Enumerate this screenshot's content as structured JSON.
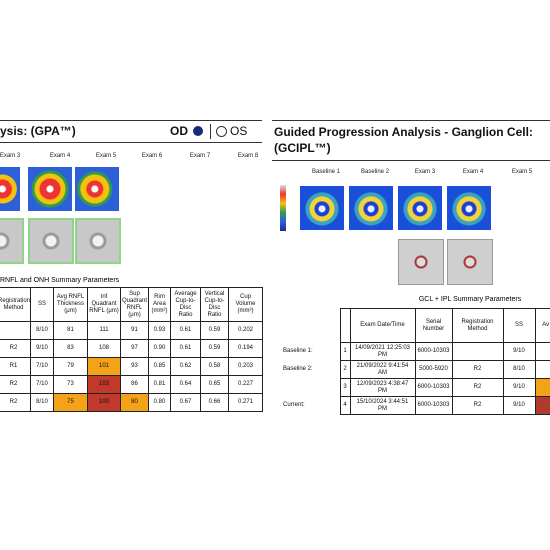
{
  "left_panel": {
    "title": "ysis: (GPA™)",
    "eye_od": "OD",
    "eye_os": "OS",
    "exam_headers": [
      "Exam 3",
      "Exam 4",
      "Exam 5",
      "Exam 6",
      "Exam 7",
      "Exam 8"
    ],
    "table": {
      "title": "RNFL and ONH Summary Parameters",
      "headers": [
        "Registration Method",
        "SS",
        "Avg RNFL Thickness (μm)",
        "Inf Quadrant RNFL (μm)",
        "Sup Quadrant RNFL (μm)",
        "Rim Area (mm²)",
        "Average Cup-to-Disc Ratio",
        "Vertical Cup-to-Disc Ratio",
        "Cup Volume (mm³)"
      ],
      "rows": [
        [
          null,
          "8/10",
          "81",
          "111",
          "91",
          "0.93",
          "0.61",
          "0.59",
          "0.202"
        ],
        [
          "R2",
          "9/10",
          "83",
          "108",
          "97",
          "0.90",
          "0.61",
          "0.59",
          "0.194"
        ],
        [
          "R1",
          "7/10",
          "79",
          {
            "text": "101",
            "color": "#f5a21b"
          },
          "93",
          "0.85",
          "0.62",
          "0.58",
          "0.203"
        ],
        [
          "R2",
          "7/10",
          "73",
          {
            "text": "103",
            "color": "#c0392b"
          },
          "86",
          "0.81",
          "0.64",
          "0.65",
          "0.227"
        ],
        [
          "R2",
          "8/10",
          {
            "text": "75",
            "color": "#f5a21b"
          },
          {
            "text": "100",
            "color": "#c0392b"
          },
          {
            "text": "80",
            "color": "#f5a21b"
          },
          "0.80",
          "0.67",
          "0.66",
          "0.271"
        ]
      ]
    }
  },
  "right_panel": {
    "title": "Guided Progression Analysis - Ganglion Cell: (GCIPL™)",
    "exam_headers": [
      "Baseline 1",
      "Baseline 2",
      "Exam 3",
      "Exam 4",
      "Exam 5"
    ],
    "table": {
      "title": "GCL + IPL Summary Parameters",
      "headers": [
        null,
        "Exam Date/Time",
        "Serial Number",
        "Registration Method",
        "SS",
        "Av Th"
      ],
      "row_labels": [
        "Baseline 1:",
        "Baseline 2:",
        null,
        "Current:"
      ],
      "rows": [
        [
          "1",
          "14/09/2021 12:25:03 PM",
          "6000-10303",
          null,
          "9/10",
          null
        ],
        [
          "2",
          "21/09/2022 9:41:54 AM",
          "5000-5920",
          "R2",
          "8/10",
          null
        ],
        [
          "3",
          "12/09/2023 4:38:47 PM",
          "6000-10303",
          "R2",
          "9/10",
          {
            "color": "#f5a21b"
          }
        ],
        [
          "4",
          "15/10/2024 3:44:51 PM",
          "6000-10303",
          "R2",
          "9/10",
          {
            "color": "#b03a2e"
          }
        ]
      ]
    }
  }
}
